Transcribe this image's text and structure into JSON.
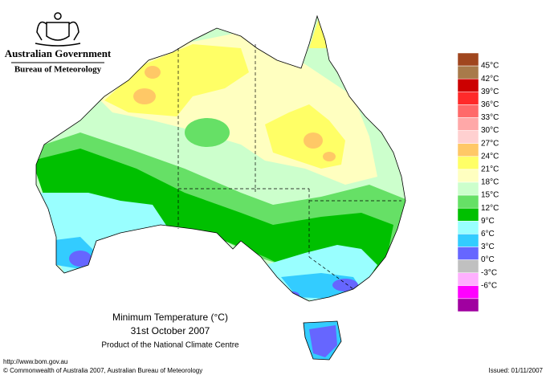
{
  "header": {
    "government": "Australian Government",
    "agency": "Bureau of Meteorology"
  },
  "map": {
    "title": "Minimum Temperature (°C)",
    "date": "31st October 2007",
    "credit": "Product of the National Climate Centre"
  },
  "legend": {
    "labels": [
      "45°C",
      "42°C",
      "39°C",
      "36°C",
      "33°C",
      "30°C",
      "27°C",
      "24°C",
      "21°C",
      "18°C",
      "15°C",
      "12°C",
      "9°C",
      "6°C",
      "3°C",
      "0°C",
      "-3°C",
      "-6°C"
    ],
    "colors": [
      "#a0461e",
      "#a87a4a",
      "#cc0000",
      "#ff2a2a",
      "#ff6a6a",
      "#ffa8a8",
      "#ffd0d0",
      "#ffc866",
      "#ffff66",
      "#ffffc0",
      "#ccffcc",
      "#66e066",
      "#00c000",
      "#99ffff",
      "#33ccff",
      "#6666ff",
      "#c0c0c0",
      "#ffb0ff",
      "#ff00ff",
      "#a000a0"
    ]
  },
  "footer": {
    "url": "http://www.bom.gov.au",
    "copyright": "© Commonwealth of Australia 2007, Australian Bureau of Meteorology",
    "issued": "Issued: 01/11/2007"
  }
}
